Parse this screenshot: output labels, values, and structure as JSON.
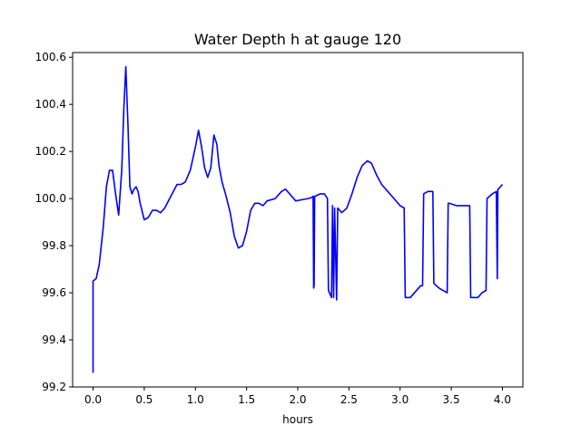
{
  "chart_data": {
    "type": "line",
    "title": "Water Depth h at gauge 120",
    "xlabel": "hours",
    "ylabel": "",
    "xlim": [
      -0.2,
      4.2
    ],
    "ylim": [
      99.2,
      100.62
    ],
    "xticks": [
      0.0,
      0.5,
      1.0,
      1.5,
      2.0,
      2.5,
      3.0,
      3.5,
      4.0
    ],
    "xtick_labels": [
      "0.0",
      "0.5",
      "1.0",
      "1.5",
      "2.0",
      "2.5",
      "3.0",
      "3.5",
      "4.0"
    ],
    "yticks": [
      99.2,
      99.4,
      99.6,
      99.8,
      100.0,
      100.2,
      100.4,
      100.6
    ],
    "ytick_labels": [
      "99.2",
      "99.4",
      "99.6",
      "99.8",
      "100.0",
      "100.2",
      "100.4",
      "100.6"
    ],
    "grid": false,
    "legend": "none",
    "series": [
      {
        "color": "#0000ff",
        "x": [
          0.0,
          0.0,
          0.03,
          0.06,
          0.1,
          0.13,
          0.16,
          0.19,
          0.22,
          0.25,
          0.28,
          0.3,
          0.32,
          0.34,
          0.36,
          0.38,
          0.4,
          0.42,
          0.44,
          0.46,
          0.5,
          0.54,
          0.58,
          0.62,
          0.66,
          0.7,
          0.76,
          0.82,
          0.86,
          0.9,
          0.95,
          1.0,
          1.03,
          1.06,
          1.09,
          1.12,
          1.15,
          1.18,
          1.21,
          1.23,
          1.26,
          1.3,
          1.34,
          1.38,
          1.42,
          1.46,
          1.5,
          1.54,
          1.58,
          1.62,
          1.66,
          1.7,
          1.78,
          1.84,
          1.88,
          1.92,
          1.98,
          2.04,
          2.1,
          2.14,
          2.15,
          2.155,
          2.16,
          2.165,
          2.17,
          2.22,
          2.26,
          2.29,
          2.3,
          2.33,
          2.34,
          2.35,
          2.36,
          2.38,
          2.39,
          2.43,
          2.48,
          2.53,
          2.58,
          2.63,
          2.68,
          2.72,
          2.77,
          2.82,
          2.88,
          2.94,
          3.0,
          3.04,
          3.05,
          3.1,
          3.2,
          3.22,
          3.23,
          3.27,
          3.3,
          3.32,
          3.33,
          3.38,
          3.46,
          3.47,
          3.48,
          3.55,
          3.64,
          3.68,
          3.69,
          3.76,
          3.8,
          3.84,
          3.85,
          3.9,
          3.94,
          3.95,
          3.955,
          3.96,
          4.0
        ],
        "values": [
          99.26,
          99.65,
          99.66,
          99.72,
          99.88,
          100.05,
          100.12,
          100.12,
          100.02,
          99.93,
          100.12,
          100.38,
          100.56,
          100.32,
          100.05,
          100.02,
          100.04,
          100.05,
          100.03,
          99.98,
          99.91,
          99.92,
          99.95,
          99.95,
          99.94,
          99.96,
          100.01,
          100.06,
          100.06,
          100.07,
          100.12,
          100.22,
          100.29,
          100.22,
          100.13,
          100.09,
          100.13,
          100.27,
          100.23,
          100.14,
          100.07,
          100.01,
          99.94,
          99.84,
          99.79,
          99.8,
          99.86,
          99.95,
          99.98,
          99.98,
          99.97,
          99.99,
          100.0,
          100.03,
          100.04,
          100.02,
          99.99,
          99.995,
          100.0,
          100.005,
          100.01,
          99.62,
          99.63,
          100.01,
          100.01,
          100.02,
          100.02,
          100.0,
          99.61,
          99.58,
          99.97,
          99.58,
          99.96,
          99.57,
          99.96,
          99.94,
          99.96,
          100.02,
          100.09,
          100.14,
          100.16,
          100.15,
          100.1,
          100.06,
          100.03,
          100.0,
          99.97,
          99.96,
          99.58,
          99.58,
          99.63,
          99.63,
          100.02,
          100.03,
          100.03,
          100.03,
          99.64,
          99.62,
          99.6,
          99.98,
          99.98,
          99.97,
          99.97,
          99.97,
          99.58,
          99.58,
          99.6,
          99.61,
          100.0,
          100.02,
          100.03,
          99.66,
          100.04,
          100.04,
          100.06
        ]
      }
    ]
  }
}
